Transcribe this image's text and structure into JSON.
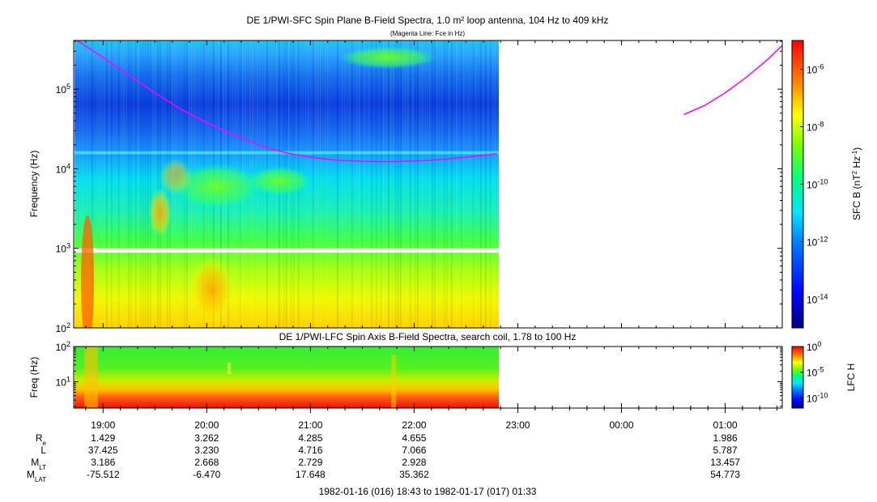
{
  "chart_data": [
    {
      "type": "heatmap",
      "title": "DE 1/PWI-SFC  Spin Plane B-Field Spectra, 1.0 m² loop antenna, 104 Hz to 409 kHz",
      "subtitle": "(Magenta Line: Fce in Hz)",
      "ylabel": "Frequency (Hz)",
      "yscale": "log",
      "ylim": [
        100,
        409000
      ],
      "y_ticks": [
        {
          "value": 100,
          "mant": "10",
          "exp": "2"
        },
        {
          "value": 1000,
          "mant": "10",
          "exp": "3"
        },
        {
          "value": 10000,
          "mant": "10",
          "exp": "4"
        },
        {
          "value": 100000,
          "mant": "10",
          "exp": "5"
        }
      ],
      "data_end_time": "22:49",
      "colorbar": {
        "label_pre": "SFC B (nT",
        "label_sup1": "2",
        "label_mid": " Hz",
        "label_sup2": "-1",
        "label_post": ")",
        "scale": "log",
        "range": [
          1e-15,
          1e-05
        ],
        "ticks": [
          {
            "value": 1e-06,
            "mant": "10",
            "exp": "-6"
          },
          {
            "value": 1e-08,
            "mant": "10",
            "exp": "-8"
          },
          {
            "value": 1e-10,
            "mant": "10",
            "exp": "-10"
          },
          {
            "value": 1e-12,
            "mant": "10",
            "exp": "-12"
          },
          {
            "value": 1e-14,
            "mant": "10",
            "exp": "-14"
          }
        ]
      },
      "overlay_series": {
        "color": "#ff00ff",
        "segments": [
          {
            "x_hours": [
              18.75,
              19.0,
              19.25,
              19.5,
              19.75,
              20.0,
              20.25,
              20.5,
              20.75,
              21.0,
              21.25,
              21.5,
              21.75,
              22.0,
              22.25,
              22.5,
              22.8
            ],
            "y": [
              409000,
              250000,
              150000,
              90000,
              56000,
              38000,
              27000,
              20000,
              16000,
              14000,
              12800,
              12400,
              12300,
              12500,
              13000,
              14000,
              15500
            ]
          },
          {
            "x_hours": [
              24.6,
              24.8,
              25.0,
              25.2,
              25.4,
              25.6
            ],
            "y": [
              48000,
              62000,
              90000,
              140000,
              230000,
              409000
            ]
          }
        ]
      }
    },
    {
      "type": "heatmap",
      "title": "DE 1/PWI-LFC  Spin Axis B-Field Spectra, search coil, 1.78 to 100 Hz",
      "ylabel": "Freq (Hz)",
      "yscale": "log",
      "ylim": [
        1.78,
        100
      ],
      "y_ticks": [
        {
          "value": 10,
          "mant": "10",
          "exp": "1"
        },
        {
          "value": 100,
          "mant": "10",
          "exp": "2"
        }
      ],
      "data_end_time": "22:49",
      "colorbar": {
        "label": "LFC H",
        "scale": "log",
        "range": [
          1e-12,
          1
        ],
        "ticks": [
          {
            "value": 1,
            "mant": "10",
            "exp": "0"
          },
          {
            "value": 1e-05,
            "mant": "10",
            "exp": "-5"
          },
          {
            "value": 1e-10,
            "mant": "10",
            "exp": "-10"
          }
        ]
      }
    }
  ],
  "x_axis": {
    "range_hours": [
      18.7167,
      25.55
    ],
    "tick_hours": [
      19,
      20,
      21,
      22,
      23,
      24,
      25
    ],
    "tick_labels": [
      "19:00",
      "20:00",
      "21:00",
      "22:00",
      "23:00",
      "00:00",
      "01:00"
    ]
  },
  "ephemeris": {
    "rows": [
      {
        "label": "R",
        "sub": "e",
        "values": [
          "1.429",
          "3.262",
          "4.285",
          "4.655",
          "",
          "",
          "1.986"
        ]
      },
      {
        "label": "L",
        "sub": "",
        "values": [
          "37.425",
          "3.230",
          "4.716",
          "7.066",
          "",
          "",
          "5.787"
        ]
      },
      {
        "label": "M",
        "sub": "LT",
        "values": [
          "3.186",
          "2.668",
          "2.729",
          "2.928",
          "",
          "",
          "13.457"
        ]
      },
      {
        "label": "M",
        "sub": "LAT",
        "values": [
          "-75.512",
          "-6.470",
          "17.648",
          "35.362",
          "",
          "",
          "54.773"
        ]
      }
    ]
  },
  "time_range_label": "1982-01-16 (016) 18:43 to 1982-01-17 (017) 01:33"
}
